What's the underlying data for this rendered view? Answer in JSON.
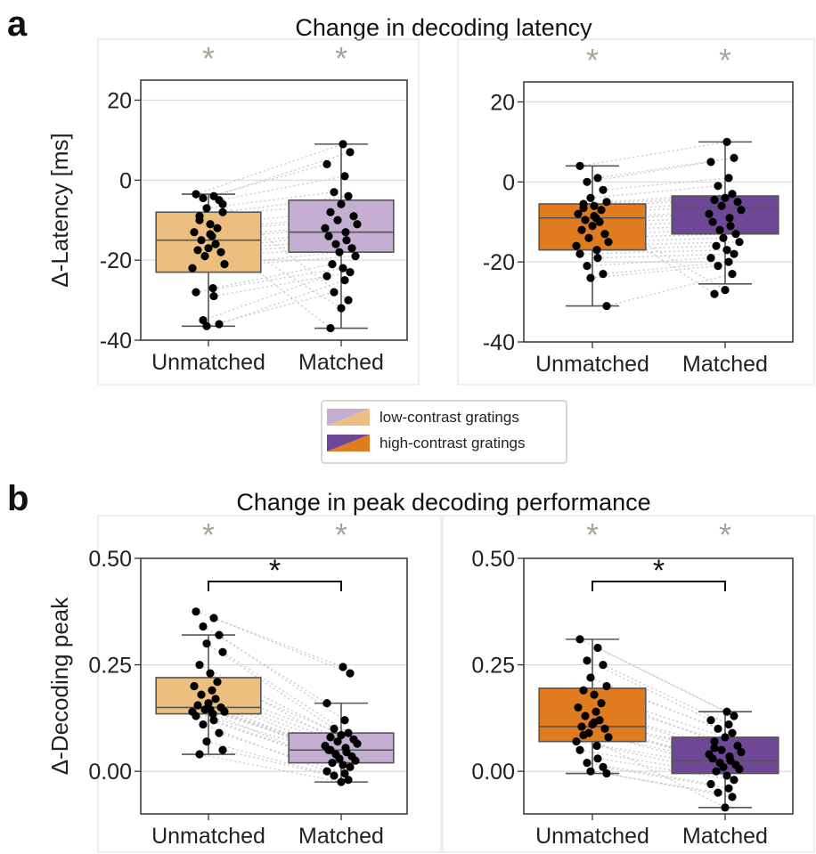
{
  "figure": {
    "panel_a_letter": "a",
    "panel_a_title": "Change in decoding latency",
    "panel_b_letter": "b",
    "panel_b_title": "Change in peak decoding performance",
    "legend": [
      {
        "label": "low-contrast gratings",
        "colors": [
          "#ecbf80",
          "#c4aed2"
        ]
      },
      {
        "label": "high-contrast gratings",
        "colors": [
          "#e07b20",
          "#6f4797"
        ]
      }
    ]
  },
  "chart_data": [
    {
      "type": "box",
      "panel": "a",
      "ylabel": "Δ-Latency [ms]",
      "categories": [
        "Unmatched",
        "Matched"
      ],
      "colors": [
        "#ecbf80",
        "#c4aed2"
      ],
      "ylim": [
        -40,
        25
      ],
      "yticks": [
        20,
        0,
        -20,
        -40
      ],
      "grid": true,
      "group_stars": [
        "*",
        "*"
      ],
      "boxes": [
        {
          "q1": -23,
          "median": -15,
          "q3": -8,
          "whisker_low": -36.5,
          "whisker_high": -3.5
        },
        {
          "q1": -18,
          "median": -13,
          "q3": -5,
          "whisker_low": -37,
          "whisker_high": 9
        }
      ],
      "points": [
        [
          -3.5,
          -4,
          -4.5,
          -5,
          -7,
          -8,
          -9,
          -11,
          -12,
          -13,
          -14,
          -15,
          -16,
          -17,
          -17.5,
          -18,
          -19,
          -21,
          -22,
          -27,
          -28,
          -29,
          -35,
          -36,
          -36.5,
          -6,
          -10,
          -13.5
        ],
        [
          9,
          7,
          4,
          1,
          -3,
          -4,
          -6,
          -8,
          -9,
          -10,
          -11,
          -12,
          -13,
          -14,
          -15,
          -16,
          -17,
          -18,
          -19,
          -21,
          -22,
          -23,
          -24,
          -25,
          -28,
          -30,
          -32,
          -37
        ]
      ]
    },
    {
      "type": "box",
      "panel": "a",
      "ylabel": "",
      "categories": [
        "Unmatched",
        "Matched"
      ],
      "colors": [
        "#e07b20",
        "#6f4797"
      ],
      "ylim": [
        -40,
        25
      ],
      "yticks": [
        20,
        0,
        -20,
        -40
      ],
      "grid": true,
      "group_stars": [
        "*",
        "*"
      ],
      "boxes": [
        {
          "q1": -17,
          "median": -9,
          "q3": -5.5,
          "whisker_low": -31,
          "whisker_high": 4
        },
        {
          "q1": -13,
          "median": -6.5,
          "q3": -3.5,
          "whisker_low": -25.5,
          "whisker_high": 10
        }
      ],
      "points": [
        [
          4,
          1,
          0,
          -2,
          -4,
          -5,
          -5.5,
          -6,
          -7,
          -8,
          -9,
          -9.5,
          -10,
          -11,
          -12,
          -13,
          -14,
          -15,
          -16,
          -17,
          -18,
          -19,
          -21,
          -23,
          -24,
          -31,
          -6.5,
          -8.5
        ],
        [
          10,
          6,
          5,
          1,
          -1,
          -3,
          -4,
          -4.5,
          -5,
          -6,
          -7,
          -8,
          -9,
          -10,
          -11,
          -12,
          -13,
          -14,
          -15,
          -16,
          -17,
          -18,
          -19,
          -20,
          -21,
          -23,
          -27,
          -28
        ]
      ]
    },
    {
      "type": "box",
      "panel": "b",
      "ylabel": "Δ-Decoding peak",
      "categories": [
        "Unmatched",
        "Matched"
      ],
      "colors": [
        "#ecbf80",
        "#c4aed2"
      ],
      "ylim": [
        -0.1,
        0.5
      ],
      "yticks": [
        0.5,
        0.25,
        0.0
      ],
      "ytick_labels": [
        "0.50",
        "0.25",
        "0.00"
      ],
      "grid": true,
      "group_stars": [
        "*",
        "*"
      ],
      "comparison_star": "*",
      "boxes": [
        {
          "q1": 0.135,
          "median": 0.15,
          "q3": 0.22,
          "whisker_low": 0.04,
          "whisker_high": 0.32
        },
        {
          "q1": 0.02,
          "median": 0.05,
          "q3": 0.09,
          "whisker_low": -0.025,
          "whisker_high": 0.16
        }
      ],
      "points": [
        [
          0.375,
          0.36,
          0.34,
          0.32,
          0.3,
          0.28,
          0.25,
          0.23,
          0.21,
          0.2,
          0.19,
          0.18,
          0.17,
          0.16,
          0.155,
          0.15,
          0.145,
          0.14,
          0.14,
          0.135,
          0.13,
          0.12,
          0.11,
          0.09,
          0.07,
          0.05,
          0.04,
          0.145
        ],
        [
          0.245,
          0.23,
          0.16,
          0.12,
          0.1,
          0.09,
          0.085,
          0.08,
          0.075,
          0.07,
          0.065,
          0.06,
          0.055,
          0.05,
          0.045,
          0.04,
          0.035,
          0.03,
          0.025,
          0.02,
          0.015,
          0.01,
          0.0,
          -0.005,
          -0.01,
          -0.02,
          -0.025,
          0.05
        ]
      ]
    },
    {
      "type": "box",
      "panel": "b",
      "ylabel": "",
      "categories": [
        "Unmatched",
        "Matched"
      ],
      "colors": [
        "#e07b20",
        "#6f4797"
      ],
      "ylim": [
        -0.1,
        0.5
      ],
      "yticks": [
        0.5,
        0.25,
        0.0
      ],
      "ytick_labels": [
        "0.50",
        "0.25",
        "0.00"
      ],
      "grid": true,
      "group_stars": [
        "*",
        "*"
      ],
      "comparison_star": "*",
      "boxes": [
        {
          "q1": 0.07,
          "median": 0.105,
          "q3": 0.195,
          "whisker_low": -0.005,
          "whisker_high": 0.31
        },
        {
          "q1": -0.005,
          "median": 0.025,
          "q3": 0.08,
          "whisker_low": -0.085,
          "whisker_high": 0.14
        }
      ],
      "points": [
        [
          0.31,
          0.29,
          0.26,
          0.25,
          0.22,
          0.2,
          0.19,
          0.18,
          0.16,
          0.15,
          0.14,
          0.13,
          0.12,
          0.11,
          0.105,
          0.1,
          0.09,
          0.08,
          0.07,
          0.06,
          0.05,
          0.03,
          0.02,
          0.01,
          0.0,
          -0.005,
          0.085,
          0.115
        ],
        [
          0.14,
          0.13,
          0.12,
          0.11,
          0.1,
          0.09,
          0.08,
          0.07,
          0.06,
          0.05,
          0.045,
          0.04,
          0.035,
          0.03,
          0.025,
          0.02,
          0.015,
          0.01,
          0.005,
          0.0,
          -0.01,
          -0.02,
          -0.03,
          -0.04,
          -0.05,
          -0.06,
          -0.085,
          0.055
        ]
      ]
    }
  ]
}
